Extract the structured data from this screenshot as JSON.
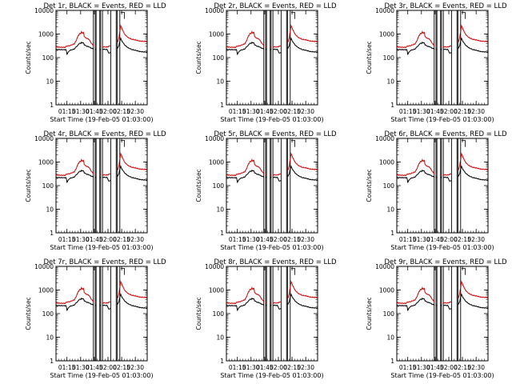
{
  "figure": {
    "panel_rows": 3,
    "panel_cols": 3
  },
  "chart_data": [
    {
      "type": "line",
      "title": "Det 1r, BLACK = Events, RED = LLD",
      "xlabel": "Start Time (19-Feb-05 01:03:00)",
      "ylabel": "Counts/sec",
      "yscale": "log",
      "ylim": [
        1,
        10000
      ],
      "y_ticks": [
        "1",
        "10",
        "100",
        "1000",
        "10000"
      ],
      "x_tick_labels": [
        "01:15",
        "01:30",
        "01:45",
        "02:00",
        "02:15",
        "02:30"
      ],
      "series": [
        {
          "name": "Events",
          "color": "#000000"
        },
        {
          "name": "LLD",
          "color": "#cc0000"
        }
      ]
    },
    {
      "type": "line",
      "title": "Det 2r, BLACK = Events, RED = LLD",
      "xlabel": "Start Time (19-Feb-05 01:03:00)",
      "ylabel": "Counts/sec",
      "yscale": "log",
      "ylim": [
        1,
        10000
      ],
      "y_ticks": [
        "1",
        "10",
        "100",
        "1000",
        "10000"
      ],
      "x_tick_labels": [
        "01:15",
        "01:30",
        "01:45",
        "02:00",
        "02:15",
        "02:30"
      ],
      "series": [
        {
          "name": "Events",
          "color": "#000000"
        },
        {
          "name": "LLD",
          "color": "#cc0000"
        }
      ]
    },
    {
      "type": "line",
      "title": "Det 3r, BLACK = Events, RED = LLD",
      "xlabel": "Start Time (19-Feb-05 01:03:00)",
      "ylabel": "Counts/sec",
      "yscale": "log",
      "ylim": [
        1,
        10000
      ],
      "y_ticks": [
        "1",
        "10",
        "100",
        "1000",
        "10000"
      ],
      "x_tick_labels": [
        "01:15",
        "01:30",
        "01:45",
        "02:00",
        "02:15",
        "02:30"
      ],
      "series": [
        {
          "name": "Events",
          "color": "#000000"
        },
        {
          "name": "LLD",
          "color": "#cc0000"
        }
      ]
    },
    {
      "type": "line",
      "title": "Det 4r, BLACK = Events, RED = LLD",
      "xlabel": "Start Time (19-Feb-05 01:03:00)",
      "ylabel": "Counts/sec",
      "yscale": "log",
      "ylim": [
        1,
        10000
      ],
      "y_ticks": [
        "1",
        "10",
        "100",
        "1000",
        "10000"
      ],
      "x_tick_labels": [
        "01:15",
        "01:30",
        "01:45",
        "02:00",
        "02:15",
        "02:30"
      ],
      "series": [
        {
          "name": "Events",
          "color": "#000000"
        },
        {
          "name": "LLD",
          "color": "#cc0000"
        }
      ]
    },
    {
      "type": "line",
      "title": "Det 5r, BLACK = Events, RED = LLD",
      "xlabel": "Start Time (19-Feb-05 01:03:00)",
      "ylabel": "Counts/sec",
      "yscale": "log",
      "ylim": [
        1,
        10000
      ],
      "y_ticks": [
        "1",
        "10",
        "100",
        "1000",
        "10000"
      ],
      "x_tick_labels": [
        "01:15",
        "01:30",
        "01:45",
        "02:00",
        "02:15",
        "02:30"
      ],
      "series": [
        {
          "name": "Events",
          "color": "#000000"
        },
        {
          "name": "LLD",
          "color": "#cc0000"
        }
      ]
    },
    {
      "type": "line",
      "title": "Det 6r, BLACK = Events, RED = LLD",
      "xlabel": "Start Time (19-Feb-05 01:03:00)",
      "ylabel": "Counts/sec",
      "yscale": "log",
      "ylim": [
        1,
        10000
      ],
      "y_ticks": [
        "1",
        "10",
        "100",
        "1000",
        "10000"
      ],
      "x_tick_labels": [
        "01:15",
        "01:30",
        "01:45",
        "02:00",
        "02:15",
        "02:30"
      ],
      "series": [
        {
          "name": "Events",
          "color": "#000000"
        },
        {
          "name": "LLD",
          "color": "#cc0000"
        }
      ]
    },
    {
      "type": "line",
      "title": "Det 7r, BLACK = Events, RED = LLD",
      "xlabel": "Start Time (19-Feb-05 01:03:00)",
      "ylabel": "Counts/sec",
      "yscale": "log",
      "ylim": [
        1,
        10000
      ],
      "y_ticks": [
        "1",
        "10",
        "100",
        "1000",
        "10000"
      ],
      "x_tick_labels": [
        "01:15",
        "01:30",
        "01:45",
        "02:00",
        "02:15",
        "02:30"
      ],
      "series": [
        {
          "name": "Events",
          "color": "#000000"
        },
        {
          "name": "LLD",
          "color": "#cc0000"
        }
      ]
    },
    {
      "type": "line",
      "title": "Det 8r, BLACK = Events, RED = LLD",
      "xlabel": "Start Time (19-Feb-05 01:03:00)",
      "ylabel": "Counts/sec",
      "yscale": "log",
      "ylim": [
        1,
        10000
      ],
      "y_ticks": [
        "1",
        "10",
        "100",
        "1000",
        "10000"
      ],
      "x_tick_labels": [
        "01:15",
        "01:30",
        "01:45",
        "02:00",
        "02:15",
        "02:30"
      ],
      "series": [
        {
          "name": "Events",
          "color": "#000000"
        },
        {
          "name": "LLD",
          "color": "#cc0000"
        }
      ]
    },
    {
      "type": "line",
      "title": "Det 9r, BLACK = Events, RED = LLD",
      "xlabel": "Start Time (19-Feb-05 01:03:00)",
      "ylabel": "Counts/sec",
      "yscale": "log",
      "ylim": [
        1,
        10000
      ],
      "y_ticks": [
        "1",
        "10",
        "100",
        "1000",
        "10000"
      ],
      "x_tick_labels": [
        "01:15",
        "01:30",
        "01:45",
        "02:00",
        "02:15",
        "02:30"
      ],
      "series": [
        {
          "name": "Events",
          "color": "#000000"
        },
        {
          "name": "LLD",
          "color": "#cc0000"
        }
      ]
    }
  ]
}
